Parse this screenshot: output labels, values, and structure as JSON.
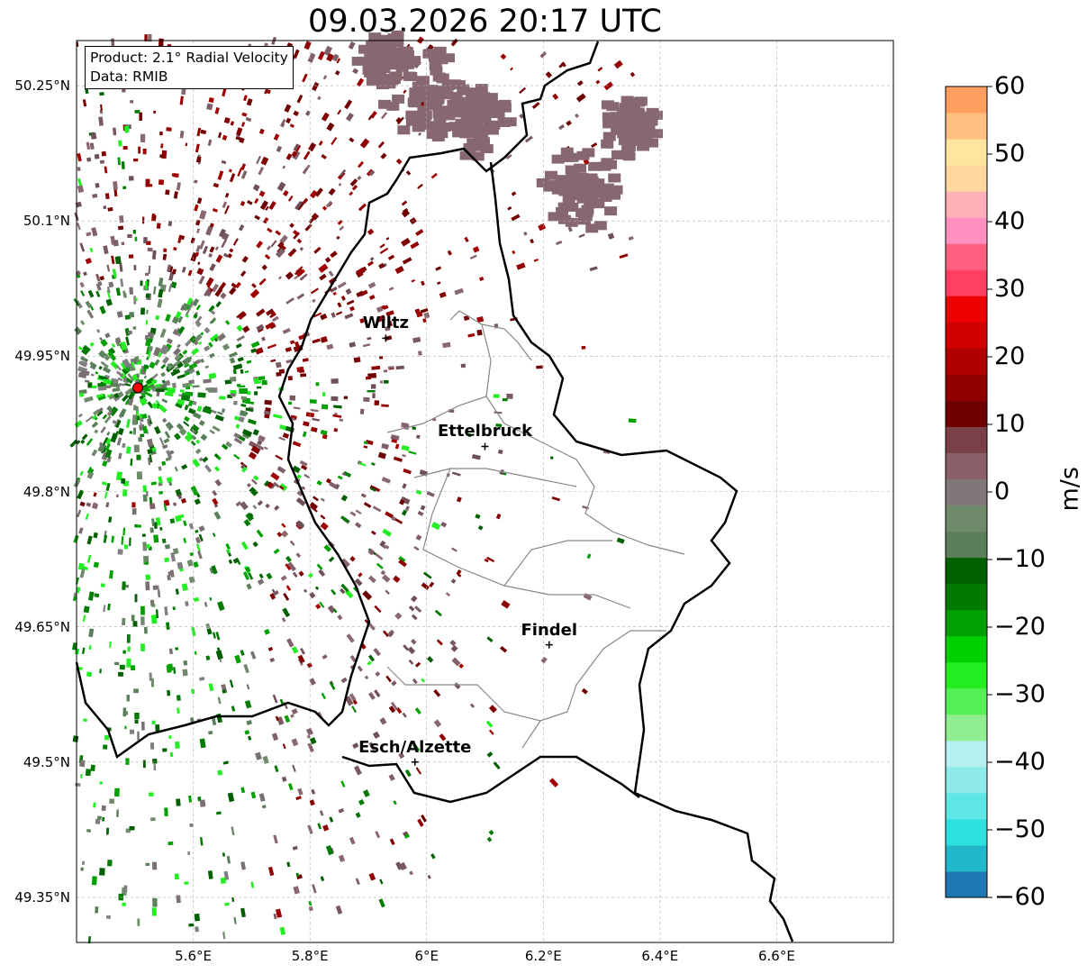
{
  "title": "09.03.2026 20:17 UTC",
  "info_box": {
    "product": "Product: 2.1° Radial Velocity",
    "source": "Data: RMIB"
  },
  "axes": {
    "lat_ticks": [
      "50.25°N",
      "50.1°N",
      "49.95°N",
      "49.8°N",
      "49.65°N",
      "49.5°N",
      "49.35°N"
    ],
    "lon_ticks": [
      "5.6°E",
      "5.8°E",
      "6°E",
      "6.2°E",
      "6.4°E",
      "6.6°E"
    ],
    "lat_range": [
      49.3,
      50.3
    ],
    "lon_range": [
      5.4,
      6.8
    ]
  },
  "colorbar": {
    "unit": "m/s",
    "range": [
      -60,
      60
    ],
    "tick_labels": [
      "60",
      "50",
      "40",
      "30",
      "20",
      "10",
      "0",
      "−10",
      "−20",
      "−30",
      "−40",
      "−50",
      "−60"
    ],
    "colors": [
      "#1f77b4",
      "#22b8cc",
      "#2ee0e0",
      "#5fe6e6",
      "#8feaea",
      "#b5efef",
      "#90ee90",
      "#55f055",
      "#22ee22",
      "#00d000",
      "#00a000",
      "#007a00",
      "#006000",
      "#5a7f5a",
      "#6f8a6a",
      "#807878",
      "#8a6068",
      "#7a4048",
      "#700000",
      "#900000",
      "#b00000",
      "#d00000",
      "#f00000",
      "#ff4060",
      "#ff6080",
      "#ff90c0",
      "#ffb0b8",
      "#ffd8a0",
      "#ffe6a0",
      "#ffc080",
      "#ffa060"
    ]
  },
  "cities": [
    {
      "name": "Wiltz",
      "lon": 5.93,
      "lat": 49.97
    },
    {
      "name": "Ettelbruck",
      "lon": 6.1,
      "lat": 49.85
    },
    {
      "name": "Findel",
      "lon": 6.21,
      "lat": 49.63
    },
    {
      "name": "Esch/Alzette",
      "lon": 5.98,
      "lat": 49.5
    }
  ],
  "radar_site": {
    "lon": 5.505,
    "lat": 49.915,
    "color": "#ff0000"
  }
}
